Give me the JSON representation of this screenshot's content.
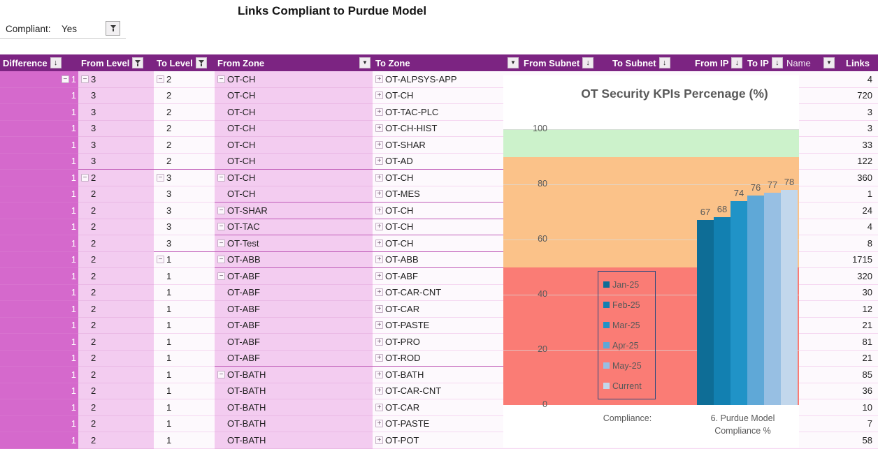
{
  "title": "Links Compliant to Purdue Model",
  "filter": {
    "label": "Compliant:",
    "value": "Yes"
  },
  "table": {
    "columns": [
      {
        "key": "d",
        "label": "Difference",
        "icon": "sort"
      },
      {
        "key": "fl",
        "label": "From Level",
        "icon": "filter"
      },
      {
        "key": "tl",
        "label": "To Level",
        "icon": "filter"
      },
      {
        "key": "fz",
        "label": "From Zone",
        "icon": "dropdown"
      },
      {
        "key": "tz",
        "label": "To Zone",
        "icon": "dropdown"
      },
      {
        "key": "fs",
        "label": "From Subnet",
        "icon": "sort"
      },
      {
        "key": "ts",
        "label": "To Subnet",
        "icon": "sort"
      },
      {
        "key": "fip",
        "label": "From IP",
        "icon": "sort"
      },
      {
        "key": "tip",
        "label": "To IP",
        "icon": "sort"
      },
      {
        "key": "nm",
        "label": "Name",
        "icon": "dropdown",
        "light": true
      },
      {
        "key": "lk",
        "label": "Links",
        "icon": "none"
      }
    ],
    "every_to_zone_has_expand_button": true,
    "rows": [
      {
        "d": "1",
        "fl": "3",
        "tl": "2",
        "fz": "OT-CH",
        "tz": "OT-ALPSYS-APP",
        "links": "4",
        "btns": [
          "d",
          "fl",
          "tl",
          "fz"
        ],
        "sep": ""
      },
      {
        "d": "1",
        "fl": "3",
        "tl": "2",
        "fz": "OT-CH",
        "tz": "OT-CH",
        "links": "720",
        "btns": [],
        "sep": ""
      },
      {
        "d": "1",
        "fl": "3",
        "tl": "2",
        "fz": "OT-CH",
        "tz": "OT-TAC-PLC",
        "links": "3",
        "btns": [],
        "sep": ""
      },
      {
        "d": "1",
        "fl": "3",
        "tl": "2",
        "fz": "OT-CH",
        "tz": "OT-CH-HIST",
        "links": "3",
        "btns": [],
        "sep": ""
      },
      {
        "d": "1",
        "fl": "3",
        "tl": "2",
        "fz": "OT-CH",
        "tz": "OT-SHAR",
        "links": "33",
        "btns": [],
        "sep": ""
      },
      {
        "d": "1",
        "fl": "3",
        "tl": "2",
        "fz": "OT-CH",
        "tz": "OT-AD",
        "links": "122",
        "btns": [],
        "sep": "fl"
      },
      {
        "d": "1",
        "fl": "2",
        "tl": "3",
        "fz": "OT-CH",
        "tz": "OT-CH",
        "links": "360",
        "btns": [
          "fl",
          "tl",
          "fz"
        ],
        "sep": ""
      },
      {
        "d": "1",
        "fl": "2",
        "tl": "3",
        "fz": "OT-CH",
        "tz": "OT-MES",
        "links": "1",
        "btns": [],
        "sep": "fz"
      },
      {
        "d": "1",
        "fl": "2",
        "tl": "3",
        "fz": "OT-SHAR",
        "tz": "OT-CH",
        "links": "24",
        "btns": [
          "fz"
        ],
        "sep": "fz"
      },
      {
        "d": "1",
        "fl": "2",
        "tl": "3",
        "fz": "OT-TAC",
        "tz": "OT-CH",
        "links": "4",
        "btns": [
          "fz"
        ],
        "sep": "fz"
      },
      {
        "d": "1",
        "fl": "2",
        "tl": "3",
        "fz": "OT-Test",
        "tz": "OT-CH",
        "links": "8",
        "btns": [
          "fz"
        ],
        "sep": "tl"
      },
      {
        "d": "1",
        "fl": "2",
        "tl": "1",
        "fz": "OT-ABB",
        "tz": "OT-ABB",
        "links": "1715",
        "btns": [
          "tl",
          "fz"
        ],
        "sep": "fz"
      },
      {
        "d": "1",
        "fl": "2",
        "tl": "1",
        "fz": "OT-ABF",
        "tz": "OT-ABF",
        "links": "320",
        "btns": [
          "fz"
        ],
        "sep": ""
      },
      {
        "d": "1",
        "fl": "2",
        "tl": "1",
        "fz": "OT-ABF",
        "tz": "OT-CAR-CNT",
        "links": "30",
        "btns": [],
        "sep": ""
      },
      {
        "d": "1",
        "fl": "2",
        "tl": "1",
        "fz": "OT-ABF",
        "tz": "OT-CAR",
        "links": "12",
        "btns": [],
        "sep": ""
      },
      {
        "d": "1",
        "fl": "2",
        "tl": "1",
        "fz": "OT-ABF",
        "tz": "OT-PASTE",
        "links": "21",
        "btns": [],
        "sep": ""
      },
      {
        "d": "1",
        "fl": "2",
        "tl": "1",
        "fz": "OT-ABF",
        "tz": "OT-PRO",
        "links": "81",
        "btns": [],
        "sep": ""
      },
      {
        "d": "1",
        "fl": "2",
        "tl": "1",
        "fz": "OT-ABF",
        "tz": "OT-ROD",
        "links": "21",
        "btns": [],
        "sep": "fz"
      },
      {
        "d": "1",
        "fl": "2",
        "tl": "1",
        "fz": "OT-BATH",
        "tz": "OT-BATH",
        "links": "85",
        "btns": [
          "fz"
        ],
        "sep": ""
      },
      {
        "d": "1",
        "fl": "2",
        "tl": "1",
        "fz": "OT-BATH",
        "tz": "OT-CAR-CNT",
        "links": "36",
        "btns": [],
        "sep": ""
      },
      {
        "d": "1",
        "fl": "2",
        "tl": "1",
        "fz": "OT-BATH",
        "tz": "OT-CAR",
        "links": "10",
        "btns": [],
        "sep": ""
      },
      {
        "d": "1",
        "fl": "2",
        "tl": "1",
        "fz": "OT-BATH",
        "tz": "OT-PASTE",
        "links": "7",
        "btns": [],
        "sep": ""
      },
      {
        "d": "1",
        "fl": "2",
        "tl": "1",
        "fz": "OT-BATH",
        "tz": "OT-POT",
        "links": "58",
        "btns": [],
        "sep": ""
      }
    ]
  },
  "chart_data": {
    "type": "bar",
    "title": "OT Security KPIs Percenage (%)",
    "categories": [
      "Jan-25",
      "Feb-25",
      "Mar-25",
      "Apr-25",
      "May-25",
      "Current"
    ],
    "values": [
      67,
      68,
      74,
      76,
      77,
      78
    ],
    "bar_colors": [
      "#0e6d96",
      "#1280b1",
      "#2093c7",
      "#5fa8d7",
      "#97bfe3",
      "#c2d7ec"
    ],
    "ylim": [
      0,
      100
    ],
    "yticks": [
      0,
      20,
      40,
      60,
      80,
      100
    ],
    "grid": true,
    "legend_position": "left-middle",
    "bands": [
      {
        "from": 90,
        "to": 100,
        "color": "#ccf2cb",
        "name": "good"
      },
      {
        "from": 50,
        "to": 90,
        "color": "#fbc289",
        "name": "warning"
      },
      {
        "from": 0,
        "to": 50,
        "color": "#fa7c75",
        "name": "critical"
      }
    ],
    "x_group_labels": [
      "Compliance:",
      "6. Purdue Model",
      "Compliance %"
    ]
  }
}
